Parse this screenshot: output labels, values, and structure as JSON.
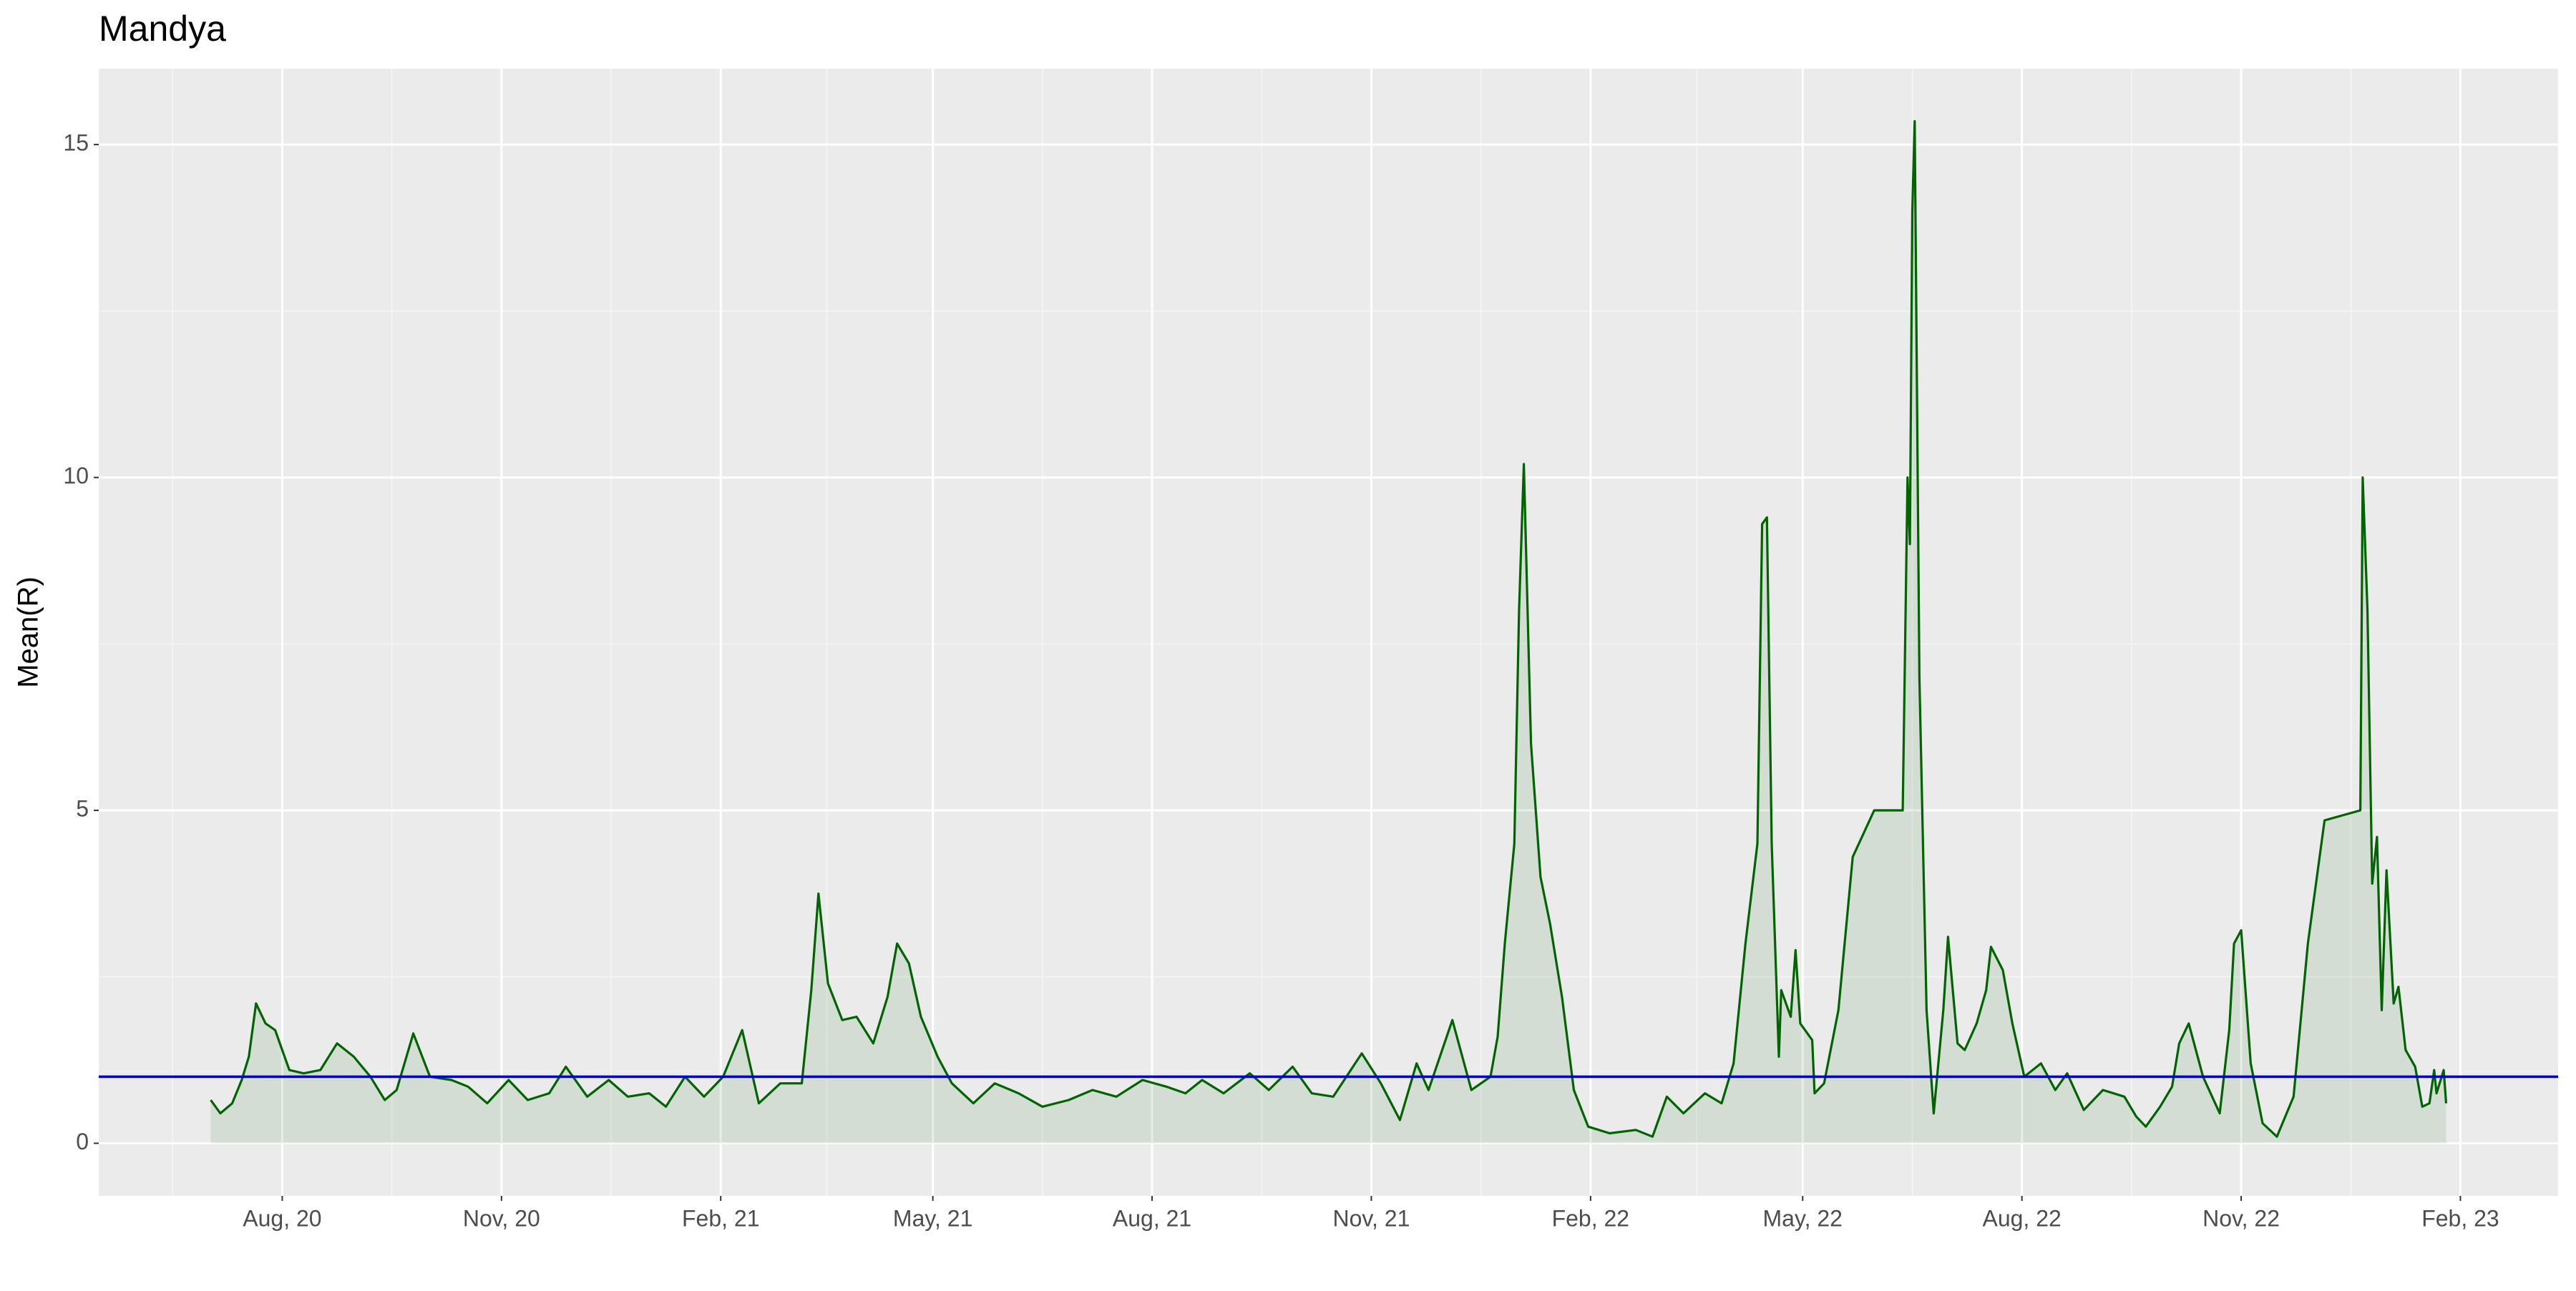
{
  "chart_data": {
    "type": "area",
    "title": "Mandya",
    "y_label": "Mean(R)",
    "x": [
      "2020-07-02",
      "2020-07-06",
      "2020-07-11",
      "2020-07-15",
      "2020-07-18",
      "2020-07-21",
      "2020-07-25",
      "2020-07-29",
      "2020-08-04",
      "2020-08-10",
      "2020-08-17",
      "2020-08-24",
      "2020-08-31",
      "2020-09-07",
      "2020-09-13",
      "2020-09-18",
      "2020-09-25",
      "2020-10-02",
      "2020-10-11",
      "2020-10-18",
      "2020-10-26",
      "2020-11-04",
      "2020-11-12",
      "2020-11-21",
      "2020-11-28",
      "2020-12-07",
      "2020-12-16",
      "2020-12-24",
      "2021-01-02",
      "2021-01-09",
      "2021-01-17",
      "2021-01-25",
      "2021-02-02",
      "2021-02-10",
      "2021-02-17",
      "2021-02-26",
      "2021-03-07",
      "2021-03-11",
      "2021-03-14",
      "2021-03-18",
      "2021-03-24",
      "2021-03-30",
      "2021-04-06",
      "2021-04-12",
      "2021-04-16",
      "2021-04-21",
      "2021-04-26",
      "2021-05-03",
      "2021-05-09",
      "2021-05-18",
      "2021-05-27",
      "2021-06-06",
      "2021-06-16",
      "2021-06-27",
      "2021-07-07",
      "2021-07-17",
      "2021-07-28",
      "2021-08-07",
      "2021-08-15",
      "2021-08-22",
      "2021-08-31",
      "2021-09-11",
      "2021-09-19",
      "2021-09-29",
      "2021-10-07",
      "2021-10-16",
      "2021-10-28",
      "2021-11-05",
      "2021-11-13",
      "2021-11-20",
      "2021-11-25",
      "2021-12-05",
      "2021-12-13",
      "2021-12-21",
      "2021-12-24",
      "2021-12-27",
      "2021-12-31",
      "2022-01-02",
      "2022-01-04",
      "2022-01-07",
      "2022-01-11",
      "2022-01-15",
      "2022-01-20",
      "2022-01-25",
      "2022-01-31",
      "2022-02-09",
      "2022-02-20",
      "2022-02-27",
      "2022-03-05",
      "2022-03-12",
      "2022-03-21",
      "2022-03-28",
      "2022-04-02",
      "2022-04-07",
      "2022-04-12",
      "2022-04-14",
      "2022-04-16",
      "2022-04-18",
      "2022-04-21",
      "2022-04-22",
      "2022-04-26",
      "2022-04-28",
      "2022-04-30",
      "2022-05-05",
      "2022-05-06",
      "2022-05-10",
      "2022-05-16",
      "2022-05-22",
      "2022-05-31",
      "2022-06-12",
      "2022-06-14",
      "2022-06-15",
      "2022-06-16",
      "2022-06-17",
      "2022-06-19",
      "2022-06-22",
      "2022-06-25",
      "2022-06-29",
      "2022-07-01",
      "2022-07-05",
      "2022-07-08",
      "2022-07-13",
      "2022-07-17",
      "2022-07-19",
      "2022-07-24",
      "2022-07-28",
      "2022-08-02",
      "2022-08-09",
      "2022-08-15",
      "2022-08-20",
      "2022-08-27",
      "2022-09-04",
      "2022-09-13",
      "2022-09-18",
      "2022-09-22",
      "2022-09-28",
      "2022-10-03",
      "2022-10-06",
      "2022-10-10",
      "2022-10-16",
      "2022-10-23",
      "2022-10-27",
      "2022-10-29",
      "2022-11-01",
      "2022-11-05",
      "2022-11-10",
      "2022-11-16",
      "2022-11-23",
      "2022-11-29",
      "2022-12-06",
      "2022-12-21",
      "2022-12-22",
      "2022-12-24",
      "2022-12-26",
      "2022-12-28",
      "2022-12-30",
      "2023-01-01",
      "2023-01-04",
      "2023-01-06",
      "2023-01-09",
      "2023-01-13",
      "2023-01-16",
      "2023-01-19",
      "2023-01-21",
      "2023-01-22",
      "2023-01-25",
      "2023-01-26"
    ],
    "values": [
      0.65,
      0.45,
      0.6,
      0.95,
      1.3,
      2.1,
      1.8,
      1.7,
      1.1,
      1.05,
      1.1,
      1.5,
      1.3,
      1.0,
      0.65,
      0.8,
      1.65,
      1.0,
      0.95,
      0.85,
      0.6,
      0.95,
      0.65,
      0.75,
      1.15,
      0.7,
      0.95,
      0.7,
      0.75,
      0.55,
      1.0,
      0.7,
      1.0,
      1.7,
      0.6,
      0.9,
      0.9,
      2.3,
      3.75,
      2.4,
      1.85,
      1.9,
      1.5,
      2.2,
      3.0,
      2.7,
      1.9,
      1.3,
      0.9,
      0.6,
      0.9,
      0.75,
      0.55,
      0.65,
      0.8,
      0.7,
      0.95,
      0.85,
      0.75,
      0.95,
      0.75,
      1.05,
      0.8,
      1.15,
      0.75,
      0.7,
      1.35,
      0.9,
      0.35,
      1.2,
      0.8,
      1.85,
      0.8,
      1.0,
      1.6,
      3.0,
      4.5,
      8.0,
      10.2,
      6.0,
      4.0,
      3.3,
      2.2,
      0.8,
      0.25,
      0.15,
      0.2,
      0.1,
      0.7,
      0.45,
      0.75,
      0.6,
      1.2,
      3.0,
      4.5,
      9.3,
      9.4,
      4.5,
      1.3,
      2.3,
      1.9,
      2.9,
      1.8,
      1.55,
      0.75,
      0.9,
      2.0,
      4.3,
      5.0,
      5.0,
      10.0,
      9.0,
      14.0,
      15.35,
      7.0,
      2.0,
      0.45,
      2.0,
      3.1,
      1.5,
      1.4,
      1.8,
      2.3,
      2.95,
      2.6,
      1.8,
      1.0,
      1.2,
      0.8,
      1.05,
      0.5,
      0.8,
      0.7,
      0.4,
      0.25,
      0.55,
      0.85,
      1.5,
      1.8,
      1.0,
      0.45,
      1.7,
      3.0,
      3.2,
      1.2,
      0.3,
      0.1,
      0.7,
      3.0,
      4.85,
      5.0,
      10.0,
      8.0,
      3.9,
      4.6,
      2.0,
      4.1,
      2.1,
      2.35,
      1.4,
      1.15,
      0.55,
      0.6,
      1.1,
      0.75,
      1.1,
      0.6
    ],
    "color": "#006400",
    "fill_opacity": 0.1,
    "hline": {
      "value": 1,
      "color": "#0000cd"
    },
    "xlim": [
      "2020-05-16",
      "2023-03-14"
    ],
    "xticks": [
      {
        "value": "2020-08-01",
        "label": "Aug, 20"
      },
      {
        "value": "2020-11-01",
        "label": "Nov, 20"
      },
      {
        "value": "2021-02-01",
        "label": "Feb, 21"
      },
      {
        "value": "2021-05-01",
        "label": "May, 21"
      },
      {
        "value": "2021-08-01",
        "label": "Aug, 21"
      },
      {
        "value": "2021-11-01",
        "label": "Nov, 21"
      },
      {
        "value": "2022-02-01",
        "label": "Feb, 22"
      },
      {
        "value": "2022-05-01",
        "label": "May, 22"
      },
      {
        "value": "2022-08-01",
        "label": "Aug, 22"
      },
      {
        "value": "2022-11-01",
        "label": "Nov, 22"
      },
      {
        "value": "2023-02-01",
        "label": "Feb, 23"
      }
    ],
    "ylim": [
      -0.79,
      16.14
    ],
    "yticks": [
      0,
      5,
      10,
      15
    ],
    "grid": true
  }
}
